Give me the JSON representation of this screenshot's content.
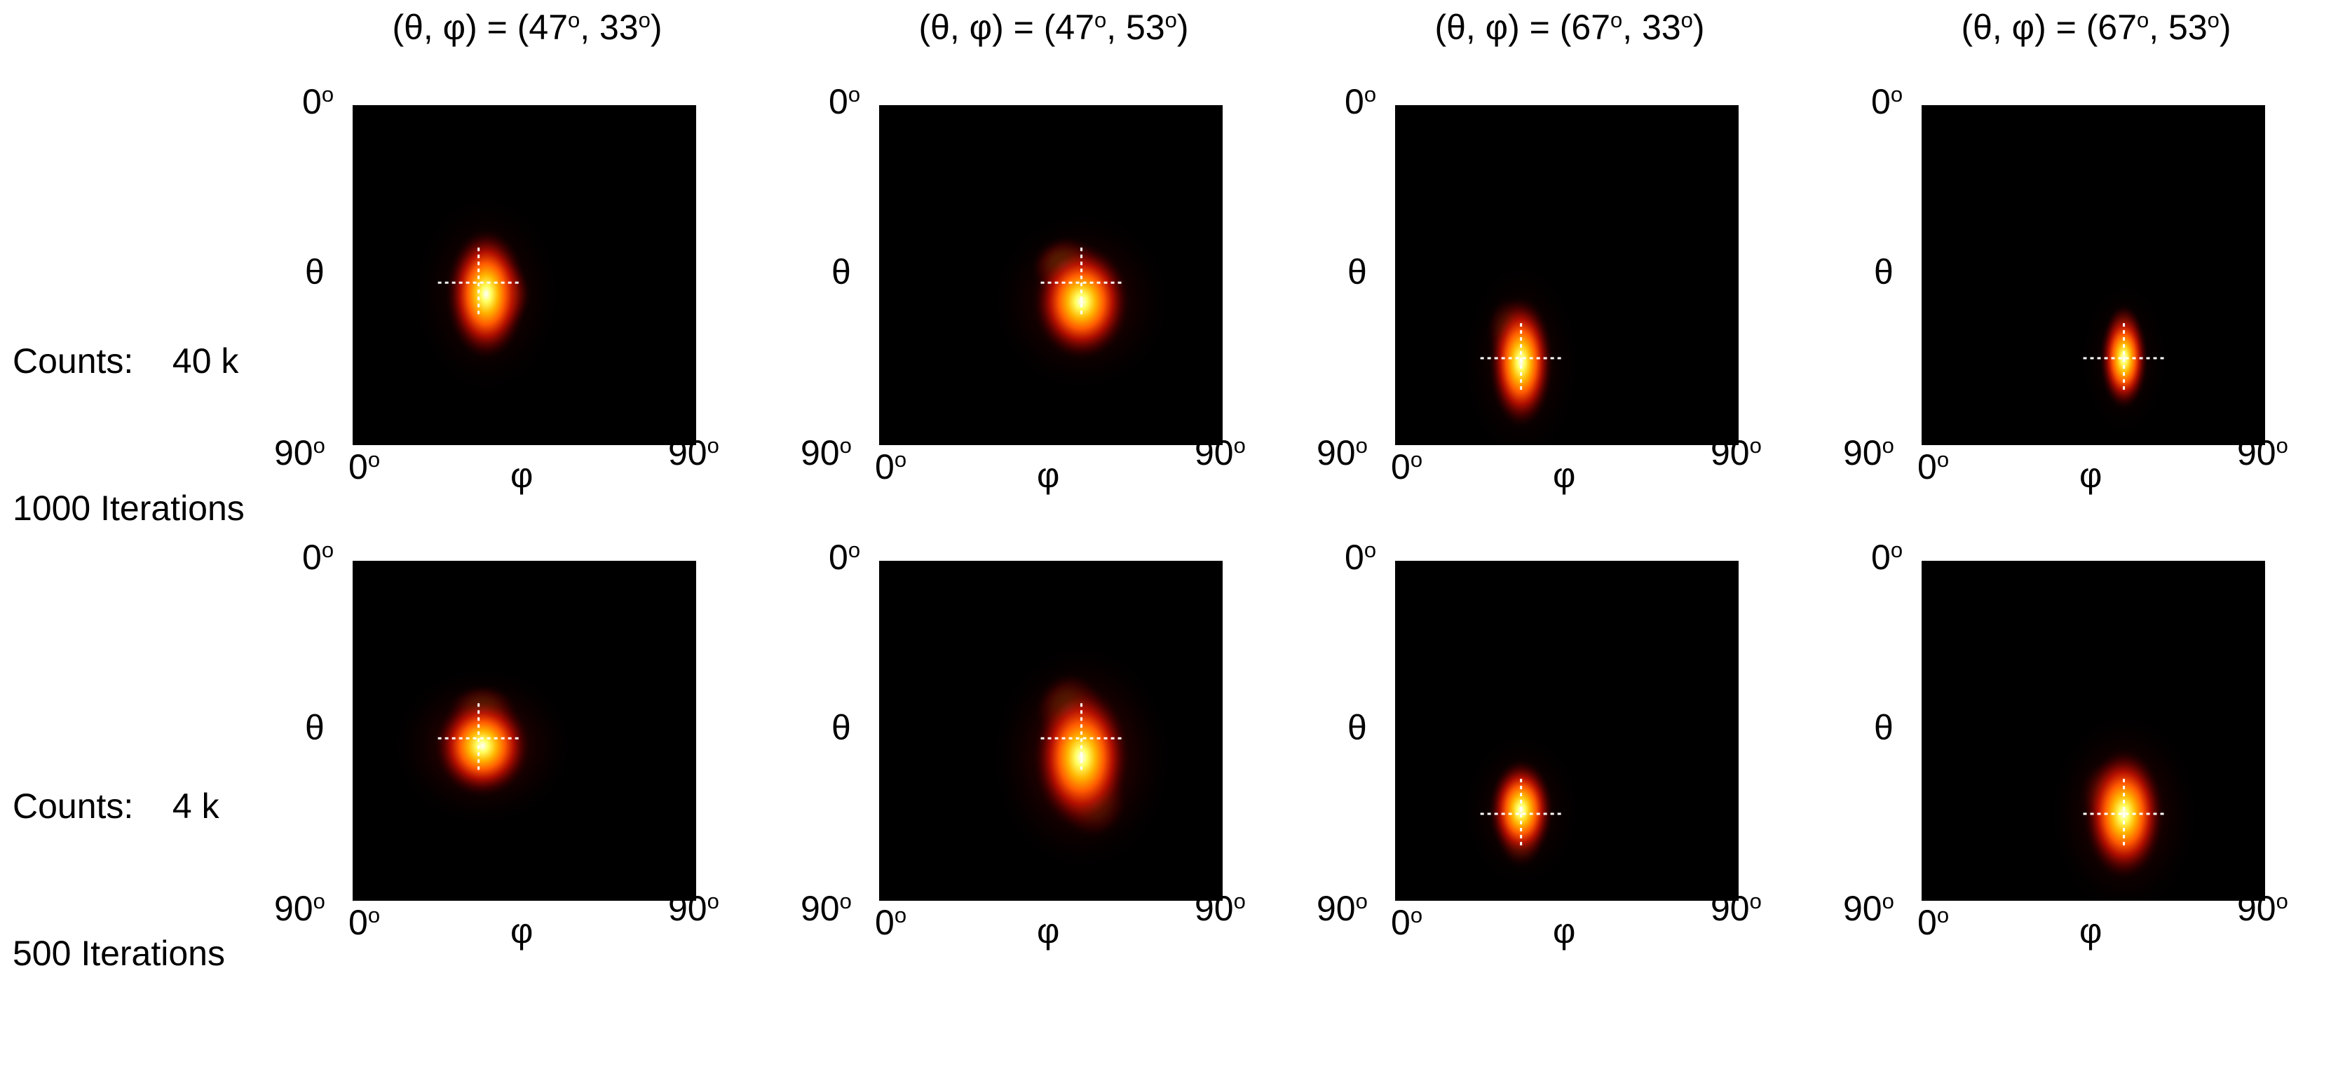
{
  "chart_data": {
    "type": "heatmap",
    "layout": "2 rows x 4 columns",
    "columns": [
      {
        "title": "(θ, φ) = (47º, 33º)",
        "theta_deg": 47,
        "phi_deg": 33
      },
      {
        "title": "(θ, φ) = (47º, 53º)",
        "theta_deg": 47,
        "phi_deg": 53
      },
      {
        "title": "(θ, φ) = (67º, 33º)",
        "theta_deg": 67,
        "phi_deg": 33
      },
      {
        "title": "(θ, φ) = (67º, 53º)",
        "theta_deg": 67,
        "phi_deg": 53
      }
    ],
    "rows": [
      {
        "label_line1": "Counts:    40 k",
        "label_line2": "1000 Iterations",
        "counts": "40 k",
        "iterations": 1000
      },
      {
        "label_line1": "Counts:    4 k",
        "label_line2": "500 Iterations",
        "counts": "4 k",
        "iterations": 500
      }
    ],
    "axes": {
      "xlabel": "φ",
      "ylabel": "θ",
      "x_tick_min": "0",
      "x_tick_max": "90",
      "y_tick_min": "0",
      "y_tick_max": "90",
      "degree_mark": "o",
      "xlim": [
        0,
        90
      ],
      "ylim": [
        0,
        90
      ],
      "y_inverted": true
    },
    "colormap": [
      "#000000",
      "#5a0000",
      "#c01000",
      "#ff5a00",
      "#ffb400",
      "#ffff60",
      "#ffffff"
    ],
    "crosshair_color": "#ffffff",
    "panels": [
      [
        {
          "peak_phi": 35,
          "peak_theta": 50,
          "spread_phi": 5,
          "spread_theta": 9,
          "halo": 0.35,
          "lobes": [
            {
              "phi": 39,
              "theta": 50,
              "w": 0.6
            }
          ]
        },
        {
          "peak_phi": 53,
          "peak_theta": 52,
          "spread_phi": 6,
          "spread_theta": 8,
          "halo": 0.45,
          "lobes": [
            {
              "phi": 49,
              "theta": 43,
              "w": 0.35
            }
          ]
        },
        {
          "peak_phi": 33,
          "peak_theta": 68,
          "spread_phi": 4,
          "spread_theta": 9,
          "halo": 0.3,
          "lobes": [
            {
              "phi": 30,
              "theta": 60,
              "w": 0.25
            }
          ]
        },
        {
          "peak_phi": 53,
          "peak_theta": 67,
          "spread_phi": 3,
          "spread_theta": 7,
          "halo": 0.25,
          "lobes": [
            {
              "phi": 53,
              "theta": 60,
              "w": 0.3
            }
          ]
        }
      ],
      [
        {
          "peak_phi": 34,
          "peak_theta": 49,
          "spread_phi": 6,
          "spread_theta": 7,
          "halo": 0.55,
          "lobes": [
            {
              "phi": 34,
              "theta": 40,
              "w": 0.3
            }
          ]
        },
        {
          "peak_phi": 53,
          "peak_theta": 52,
          "spread_phi": 6,
          "spread_theta": 10,
          "halo": 0.6,
          "lobes": [
            {
              "phi": 50,
              "theta": 40,
              "w": 0.3
            },
            {
              "phi": 56,
              "theta": 63,
              "w": 0.25
            }
          ]
        },
        {
          "peak_phi": 33,
          "peak_theta": 66,
          "spread_phi": 4,
          "spread_theta": 7,
          "halo": 0.3,
          "lobes": [
            {
              "phi": 33,
              "theta": 74,
              "w": 0.2
            }
          ]
        },
        {
          "peak_phi": 53,
          "peak_theta": 67,
          "spread_phi": 5,
          "spread_theta": 9,
          "halo": 0.45,
          "lobes": [
            {
              "phi": 49,
              "theta": 62,
              "w": 0.25
            }
          ]
        }
      ]
    ]
  }
}
